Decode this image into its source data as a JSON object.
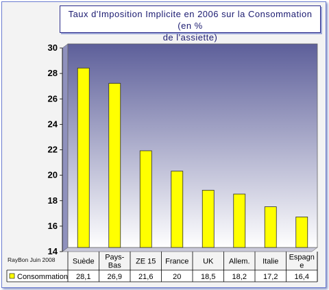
{
  "chart_data": {
    "type": "bar",
    "title": "Taux d'Imposition Implicite en 2006 sur la Consommation (en % de l'assiette)",
    "title_lines": [
      "Taux d'Imposition Implicite en 2006 sur la Consommation (en %",
      "de l'assiette)"
    ],
    "categories": [
      "Suède",
      "Pays-Bas",
      "ZE 15",
      "France",
      "UK",
      "Allem.",
      "Italie",
      "Espagne"
    ],
    "category_lines": [
      [
        "Suède"
      ],
      [
        "Pays-",
        "Bas"
      ],
      [
        "ZE 15"
      ],
      [
        "France"
      ],
      [
        "UK"
      ],
      [
        "Allem."
      ],
      [
        "Italie"
      ],
      [
        "Espagn",
        "e"
      ]
    ],
    "series": [
      {
        "name": "Consommation",
        "values": [
          28.1,
          26.9,
          21.6,
          20,
          18.5,
          18.2,
          17.2,
          16.4
        ]
      }
    ],
    "value_labels": [
      "28,1",
      "26,9",
      "21,6",
      "20",
      "18,5",
      "18,2",
      "17,2",
      "16,4"
    ],
    "ylim": [
      14,
      30
    ],
    "yticks": [
      14,
      16,
      18,
      20,
      22,
      24,
      26,
      28,
      30
    ],
    "grid": false,
    "legend": "data-table-bottom-left",
    "bar_color": "#ffff00",
    "bar_border_color": "#2a2a2a",
    "plot_gradient_top": "#5d5f9a",
    "plot_gradient_bottom": "#ffffff"
  },
  "credit": "RayBon Juin 2008"
}
